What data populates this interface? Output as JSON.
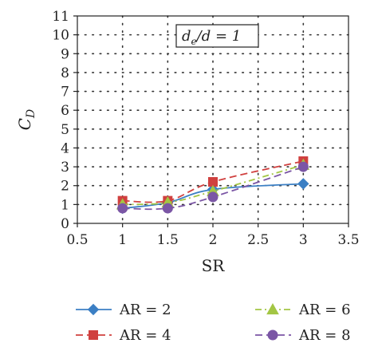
{
  "chart_data": {
    "type": "line",
    "xlabel": "SR",
    "ylabel": "C",
    "ylabel_sub": "D",
    "xlim": [
      0.5,
      3.5
    ],
    "ylim": [
      0,
      11
    ],
    "xticks": [
      "0.5",
      "1",
      "1.5",
      "2",
      "2.5",
      "3",
      "3.5"
    ],
    "yticks": [
      "0",
      "1",
      "2",
      "3",
      "4",
      "5",
      "6",
      "7",
      "8",
      "9",
      "10",
      "11"
    ],
    "grid": "dotted",
    "annotation": {
      "main": "d",
      "sub": "e",
      "rest": "/d = 1"
    },
    "legend_position": "bottom",
    "series": [
      {
        "name": "AR = 2",
        "color": "#3b7fc4",
        "dash": "solid",
        "marker": "diamond",
        "x": [
          1,
          1.5,
          2,
          3
        ],
        "y": [
          0.8,
          1.1,
          1.8,
          2.1
        ]
      },
      {
        "name": "AR = 4",
        "color": "#d0403f",
        "dash": "long-dash",
        "marker": "square",
        "x": [
          1,
          1.5,
          2,
          3
        ],
        "y": [
          1.2,
          1.2,
          2.2,
          3.3
        ]
      },
      {
        "name": "AR = 6",
        "color": "#a3c644",
        "dash": "dash-dot",
        "marker": "triangle",
        "x": [
          1,
          1.5,
          2,
          3
        ],
        "y": [
          1.0,
          1.1,
          1.7,
          3.1
        ]
      },
      {
        "name": "AR = 8",
        "color": "#7b56a5",
        "dash": "long-dash",
        "marker": "circle",
        "x": [
          1,
          1.5,
          2,
          3
        ],
        "y": [
          0.8,
          0.8,
          1.4,
          3.0
        ]
      }
    ]
  }
}
